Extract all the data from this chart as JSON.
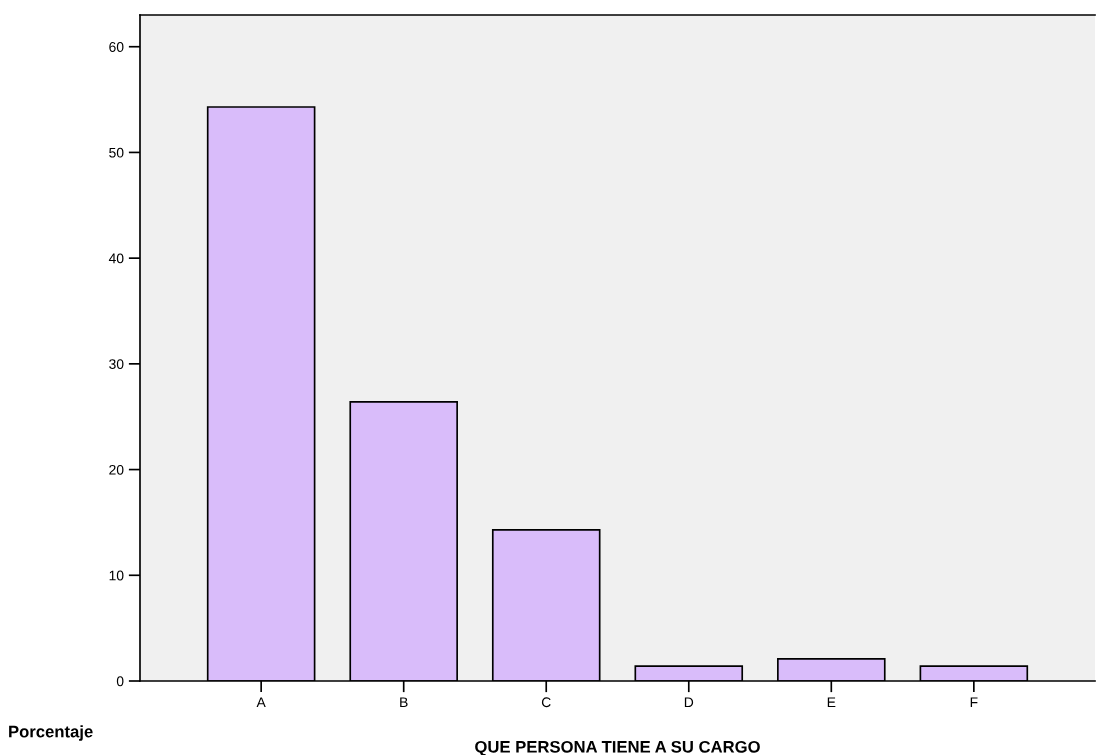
{
  "chart_data": {
    "type": "bar",
    "xlabel": "QUE PERSONA TIENE A SU CARGO",
    "ylabel": "Porcentaje",
    "categories": [
      "A",
      "B",
      "C",
      "D",
      "E",
      "F"
    ],
    "values": [
      54.3,
      26.4,
      14.3,
      1.4,
      2.1,
      1.4
    ],
    "color": "#d9bcfa",
    "ylim": [
      0,
      63
    ],
    "yticks": [
      0,
      10,
      20,
      30,
      40,
      50,
      60
    ],
    "grid": false,
    "legend": false
  }
}
